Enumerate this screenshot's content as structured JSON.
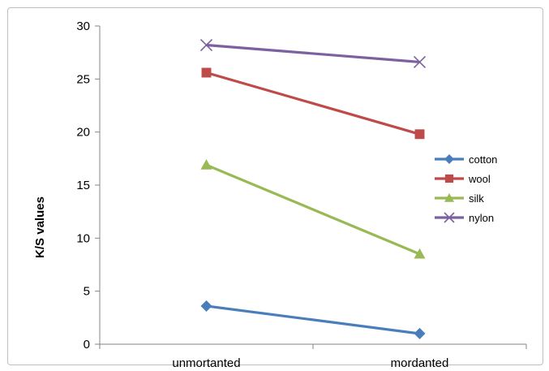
{
  "chart_data": {
    "type": "line",
    "title": "",
    "xlabel": "",
    "ylabel": "K/S values",
    "categories": [
      "unmortanted",
      "mordanted"
    ],
    "ylim": [
      0,
      30
    ],
    "yticks": [
      0,
      5,
      10,
      15,
      20,
      25,
      30
    ],
    "grid": false,
    "legend_position": "right",
    "series": [
      {
        "name": "cotton",
        "values": [
          3.6,
          1.0
        ],
        "color": "#4a7ebb",
        "marker": "diamond"
      },
      {
        "name": "wool",
        "values": [
          25.6,
          19.8
        ],
        "color": "#be4b48",
        "marker": "square"
      },
      {
        "name": "silk",
        "values": [
          16.9,
          8.5
        ],
        "color": "#98b954",
        "marker": "triangle"
      },
      {
        "name": "nylon",
        "values": [
          28.2,
          26.6
        ],
        "color": "#7d60a0",
        "marker": "x"
      }
    ]
  }
}
